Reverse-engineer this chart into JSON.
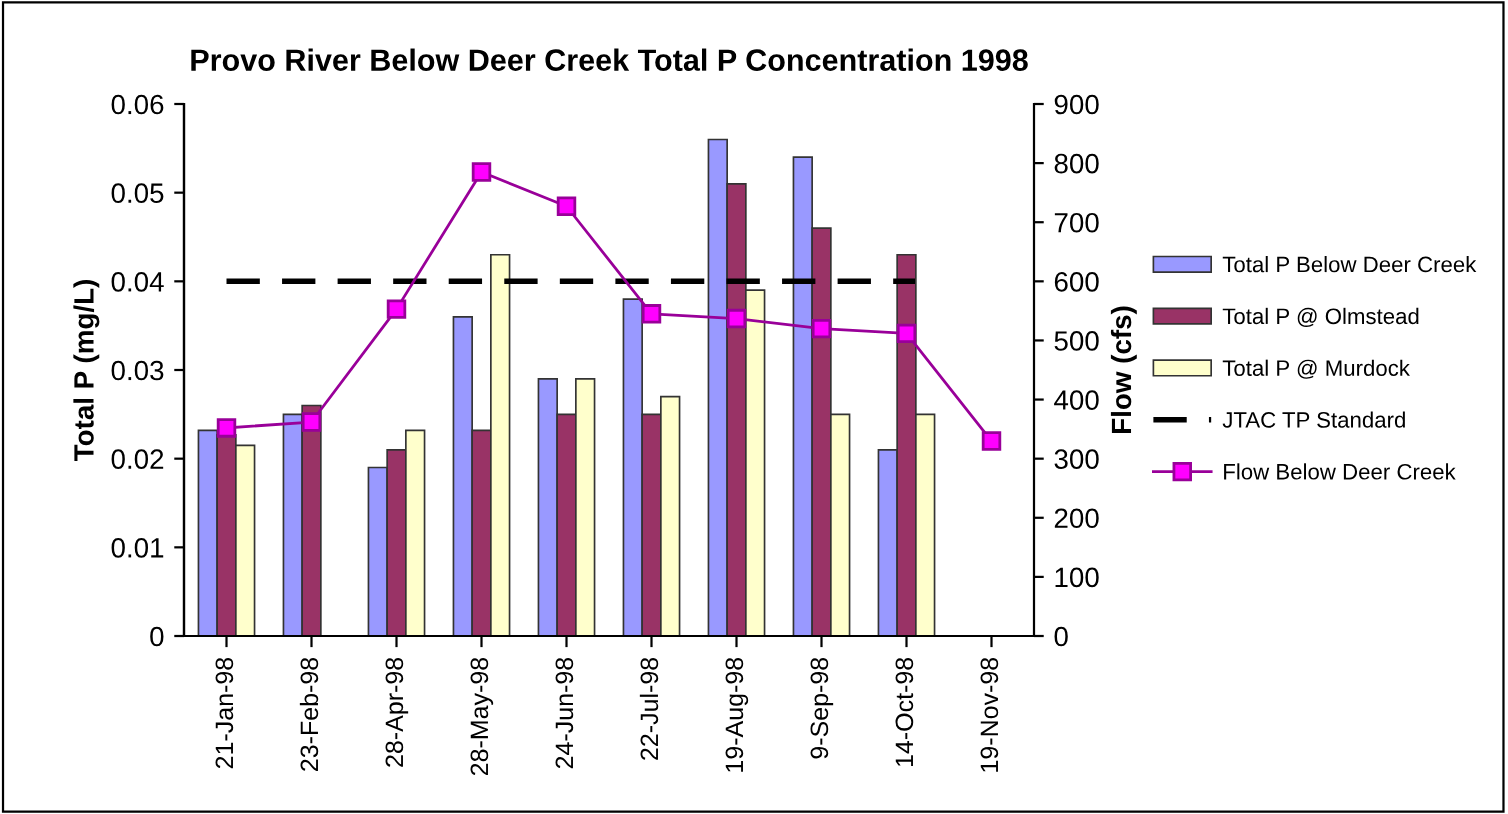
{
  "chart_data": {
    "type": "bar",
    "title": "Provo River Below Deer Creek Total P Concentration 1998",
    "ylabel": "Total P (mg/L)",
    "y2label": "Flow (cfs)",
    "categories": [
      "21-Jan-98",
      "23-Feb-98",
      "28-Apr-98",
      "28-May-98",
      "24-Jun-98",
      "22-Jul-98",
      "19-Aug-98",
      "9-Sep-98",
      "14-Oct-98",
      "19-Nov-98"
    ],
    "series": [
      {
        "name": "Total P Below Deer Creek",
        "color": "#9999ff",
        "values": [
          0.0232,
          0.025,
          0.019,
          0.036,
          0.029,
          0.038,
          0.056,
          0.054,
          0.021,
          null
        ]
      },
      {
        "name": "Total P @ Olmstead",
        "color": "#993366",
        "values": [
          0.0227,
          0.026,
          0.021,
          0.0232,
          0.025,
          0.025,
          0.051,
          0.046,
          0.043,
          null
        ]
      },
      {
        "name": "Total P @ Murdock",
        "color": "#ffffcc",
        "values": [
          0.0215,
          null,
          0.0232,
          0.043,
          0.029,
          0.027,
          0.039,
          0.025,
          0.025,
          null
        ]
      },
      {
        "name": "Flow Below Deer Creek",
        "type": "line",
        "axis": "y2",
        "color": "#990099",
        "marker": "square",
        "values": [
          352,
          362,
          553,
          785,
          727,
          545,
          537,
          520,
          512,
          330
        ]
      }
    ],
    "ref_lines": [
      {
        "axis": "y",
        "value": 0.04,
        "label": "JTAC TP Standard",
        "color": "#000000",
        "line_style": "dashed"
      }
    ],
    "ylim": [
      0,
      0.06
    ],
    "yticks": [
      0,
      0.01,
      0.02,
      0.03,
      0.04,
      0.05,
      0.06
    ],
    "y2lim": [
      0,
      900
    ],
    "y2ticks": [
      0,
      100,
      200,
      300,
      400,
      500,
      600,
      700,
      800,
      900
    ],
    "grid": false,
    "legend": "right"
  }
}
